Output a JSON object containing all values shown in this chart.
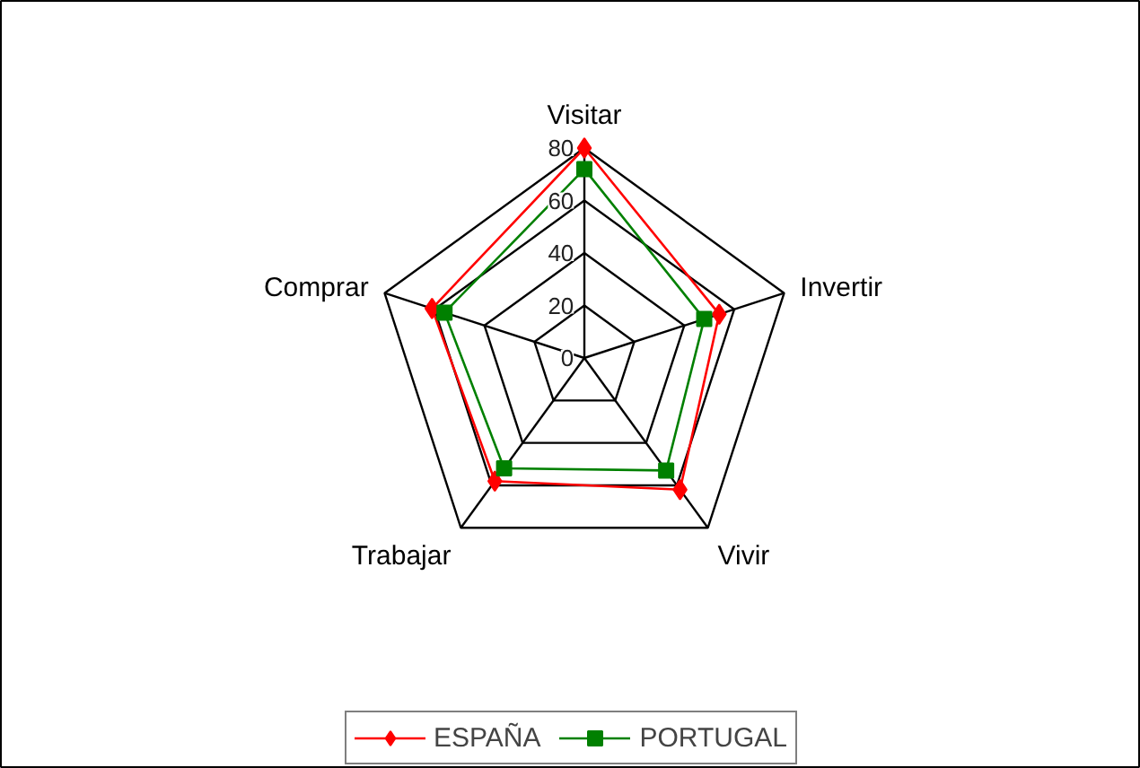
{
  "chart_data": {
    "type": "radar",
    "categories": [
      "Visitar",
      "Invertir",
      "Vivir",
      "Trabajar",
      "Comprar"
    ],
    "ylim": [
      0,
      80
    ],
    "yticks": [
      0,
      20,
      40,
      60,
      80
    ],
    "legend": "bottom",
    "line_style": "solid",
    "series": [
      {
        "name": "ESPAÑA",
        "color": "#ff0000",
        "marker": "diamond",
        "values": [
          80,
          54,
          62,
          58,
          61
        ]
      },
      {
        "name": "PORTUGAL",
        "color": "#008000",
        "marker": "square",
        "values": [
          72,
          48,
          53,
          52,
          56
        ]
      }
    ]
  }
}
